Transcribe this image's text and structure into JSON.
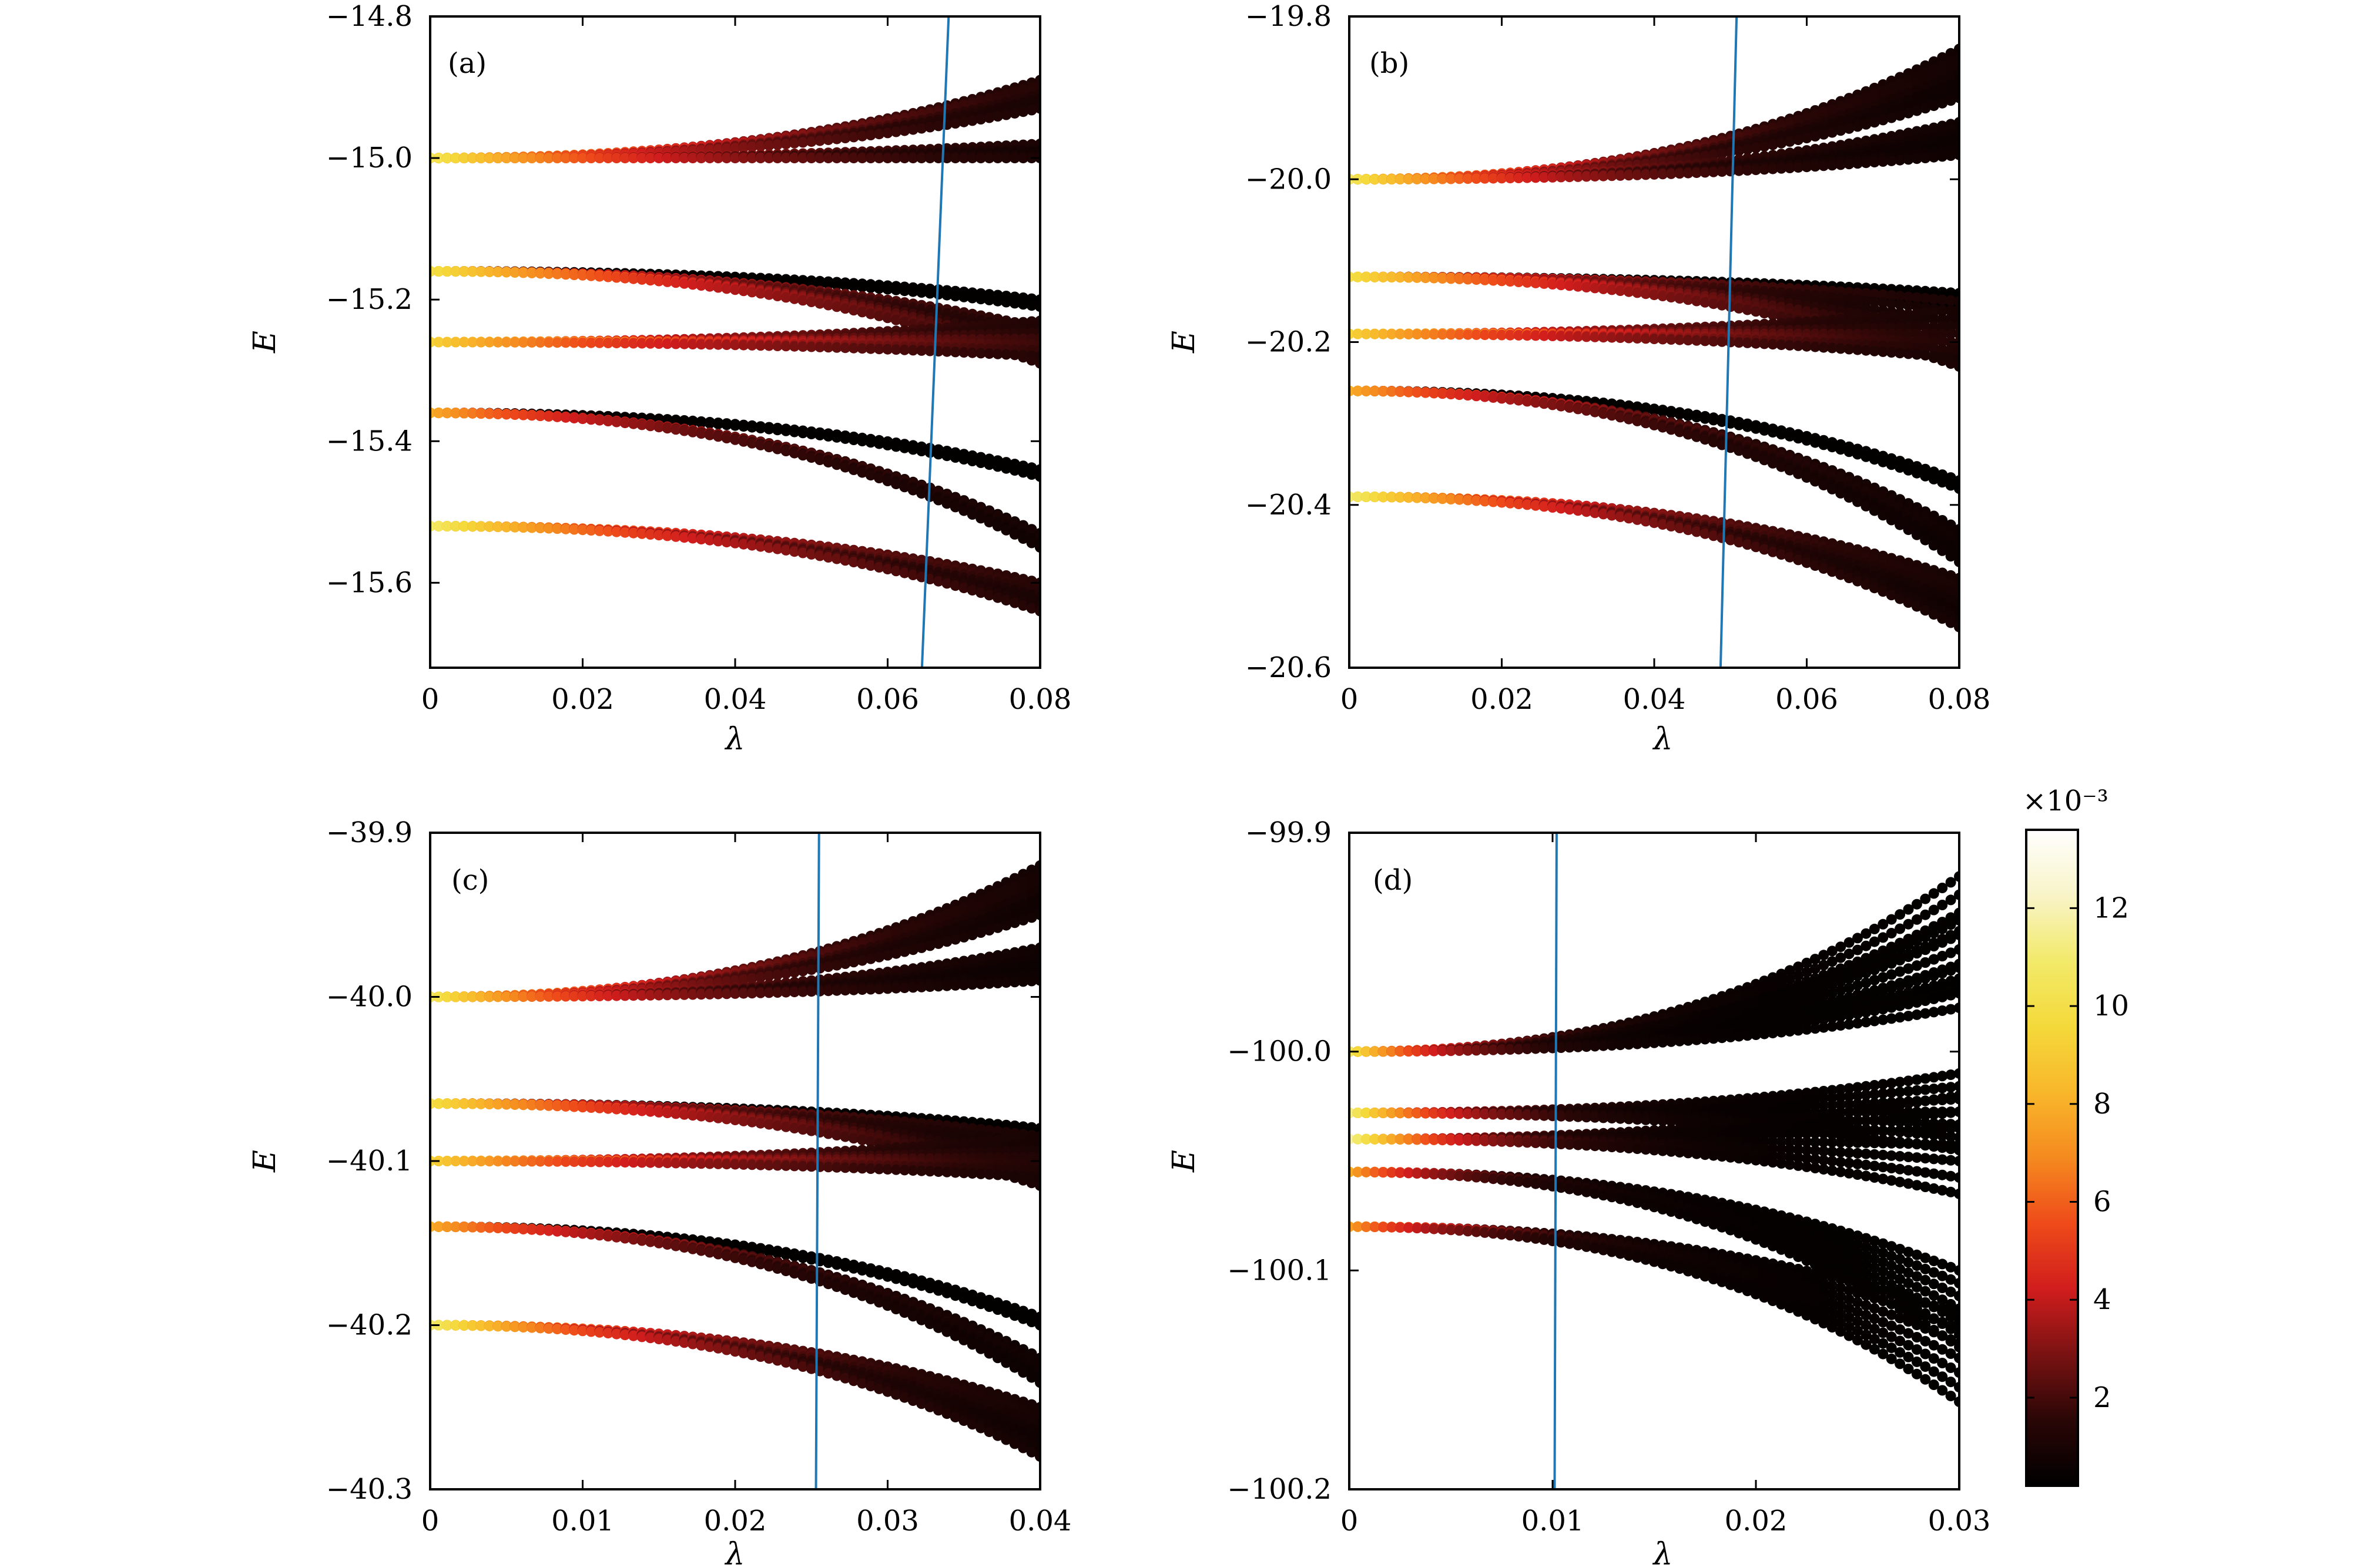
{
  "chart_data": [
    {
      "type": "scatter",
      "panel_label": "(a)",
      "xlabel": "λ",
      "ylabel": "E",
      "xlim": [
        0,
        0.08
      ],
      "ylim": [
        -15.72,
        -14.8
      ],
      "xticks": [
        "0",
        "0.02",
        "0.04",
        "0.06",
        "0.08"
      ],
      "yticks": [
        "−14.8",
        "−15.0",
        "−15.2",
        "−15.4",
        "−15.6"
      ],
      "ytick_values": [
        -14.8,
        -15.0,
        -15.2,
        -15.4,
        -15.6
      ],
      "bands": [
        {
          "y0": -15.0,
          "y_top": -14.89,
          "y_bot": -14.93,
          "cw": 0.0,
          "ct": 0.054,
          "density_max": 12
        },
        {
          "y0": -15.0,
          "y_top": -14.98,
          "y_bot": -15.0,
          "cw": 0.0,
          "ct": 0.05,
          "density_max": 11
        },
        {
          "y0": -15.16,
          "y_top": -15.2,
          "y_bot": -15.21,
          "cw": 0.0,
          "ct": 0.01,
          "density_max": 10
        },
        {
          "y0": -15.16,
          "y_top": -15.24,
          "y_bot": -15.29,
          "cw": 0.0,
          "ct": 0.06,
          "density_max": 11
        },
        {
          "y0": -15.26,
          "y_top": -15.23,
          "y_bot": -15.28,
          "cw": 0.0,
          "ct": 0.06,
          "density_max": 13
        },
        {
          "y0": -15.36,
          "y_top": -15.44,
          "y_bot": -15.45,
          "cw": 0.0,
          "ct": 0.01,
          "density_max": 10
        },
        {
          "y0": -15.36,
          "y_top": -15.53,
          "y_bot": -15.55,
          "cw": 0.0,
          "ct": 0.045,
          "density_max": 11
        },
        {
          "y0": -15.52,
          "y_top": -15.6,
          "y_bot": -15.64,
          "cw": 0.0,
          "ct": 0.055,
          "density_max": 12
        }
      ],
      "vline": [
        {
          "x": 0.0645,
          "y": -15.72
        },
        {
          "x": 0.068,
          "y": -14.8
        }
      ]
    },
    {
      "type": "scatter",
      "panel_label": "(b)",
      "xlabel": "λ",
      "ylabel": "E",
      "xlim": [
        0,
        0.08
      ],
      "ylim": [
        -20.6,
        -19.8
      ],
      "xticks": [
        "0",
        "0.02",
        "0.04",
        "0.06",
        "0.08"
      ],
      "yticks": [
        "−19.8",
        "−20.0",
        "−20.2",
        "−20.4",
        "−20.6"
      ],
      "ytick_values": [
        -19.8,
        -20.0,
        -20.2,
        -20.4,
        -20.6
      ],
      "bands": [
        {
          "y0": -20.0,
          "y_top": -19.84,
          "y_bot": -19.9,
          "cw": 0.0,
          "ct": 0.042,
          "density_max": 12
        },
        {
          "y0": -20.0,
          "y_top": -19.93,
          "y_bot": -19.97,
          "cw": 0.0,
          "ct": 0.04,
          "density_max": 11
        },
        {
          "y0": -20.12,
          "y_top": -20.14,
          "y_bot": -20.16,
          "cw": 0.0,
          "ct": 0.01,
          "density_max": 10
        },
        {
          "y0": -20.12,
          "y_top": -20.15,
          "y_bot": -20.23,
          "cw": 0.0,
          "ct": 0.05,
          "density_max": 11
        },
        {
          "y0": -20.19,
          "y_top": -20.16,
          "y_bot": -20.22,
          "cw": 0.0,
          "ct": 0.05,
          "density_max": 13
        },
        {
          "y0": -20.26,
          "y_top": -20.37,
          "y_bot": -20.38,
          "cw": 0.0,
          "ct": 0.01,
          "density_max": 10
        },
        {
          "y0": -20.26,
          "y_top": -20.43,
          "y_bot": -20.47,
          "cw": 0.0,
          "ct": 0.04,
          "density_max": 11
        },
        {
          "y0": -20.39,
          "y_top": -20.49,
          "y_bot": -20.55,
          "cw": 0.0,
          "ct": 0.045,
          "density_max": 12
        }
      ],
      "vline": [
        {
          "x": 0.0487,
          "y": -20.6
        },
        {
          "x": 0.0508,
          "y": -19.8
        }
      ]
    },
    {
      "type": "scatter",
      "panel_label": "(c)",
      "xlabel": "λ",
      "ylabel": "E",
      "xlim": [
        0,
        0.04
      ],
      "ylim": [
        -40.3,
        -39.9
      ],
      "xticks": [
        "0",
        "0.01",
        "0.02",
        "0.03",
        "0.04"
      ],
      "yticks": [
        "−39.9",
        "−40.0",
        "−40.1",
        "−40.2",
        "−40.3"
      ],
      "ytick_values": [
        -39.9,
        -40.0,
        -40.1,
        -40.2,
        -40.3
      ],
      "bands": [
        {
          "y0": -40.0,
          "y_top": -39.92,
          "y_bot": -39.95,
          "cw": 0.0,
          "ct": 0.022,
          "density_max": 12
        },
        {
          "y0": -40.0,
          "y_top": -39.97,
          "y_bot": -39.99,
          "cw": 0.0,
          "ct": 0.02,
          "density_max": 11
        },
        {
          "y0": -40.065,
          "y_top": -40.08,
          "y_bot": -40.085,
          "cw": 0.0,
          "ct": 0.005,
          "density_max": 10
        },
        {
          "y0": -40.065,
          "y_top": -40.085,
          "y_bot": -40.115,
          "cw": 0.0,
          "ct": 0.025,
          "density_max": 11
        },
        {
          "y0": -40.1,
          "y_top": -40.085,
          "y_bot": -40.11,
          "cw": 0.0,
          "ct": 0.025,
          "density_max": 13
        },
        {
          "y0": -40.14,
          "y_top": -40.195,
          "y_bot": -40.2,
          "cw": 0.0,
          "ct": 0.005,
          "density_max": 10
        },
        {
          "y0": -40.14,
          "y_top": -40.22,
          "y_bot": -40.235,
          "cw": 0.0,
          "ct": 0.02,
          "density_max": 11
        },
        {
          "y0": -40.2,
          "y_top": -40.25,
          "y_bot": -40.28,
          "cw": 0.0,
          "ct": 0.022,
          "density_max": 12
        }
      ],
      "vline": [
        {
          "x": 0.0253,
          "y": -40.3
        },
        {
          "x": 0.0255,
          "y": -39.9
        }
      ]
    },
    {
      "type": "scatter",
      "panel_label": "(d)",
      "xlabel": "λ",
      "ylabel": "E",
      "xlim": [
        0,
        0.03
      ],
      "ylim": [
        -100.2,
        -99.9
      ],
      "xticks": [
        "0",
        "0.01",
        "0.02",
        "0.03"
      ],
      "yticks": [
        "−99.9",
        "−100.0",
        "−100.1",
        "−100.2"
      ],
      "ytick_values": [
        -99.9,
        -100.0,
        -100.1,
        -100.2
      ],
      "bands": [
        {
          "y0": -100.0,
          "y_top": -99.92,
          "y_bot": -99.97,
          "cw": 0.0,
          "ct": 0.008,
          "density_max": 12
        },
        {
          "y0": -100.0,
          "y_top": -99.94,
          "y_bot": -99.98,
          "cw": 0.0,
          "ct": 0.007,
          "density_max": 11
        },
        {
          "y0": -100.028,
          "y_top": -100.01,
          "y_bot": -100.045,
          "cw": 0.0,
          "ct": 0.008,
          "density_max": 11
        },
        {
          "y0": -100.04,
          "y_top": -100.02,
          "y_bot": -100.065,
          "cw": 0.0,
          "ct": 0.008,
          "density_max": 13
        },
        {
          "y0": -100.055,
          "y_top": -100.1,
          "y_bot": -100.135,
          "cw": 0.0,
          "ct": 0.007,
          "density_max": 11
        },
        {
          "y0": -100.08,
          "y_top": -100.12,
          "y_bot": -100.16,
          "cw": 0.0,
          "ct": 0.008,
          "density_max": 12
        }
      ],
      "vline": [
        {
          "x": 0.0101,
          "y": -100.2
        },
        {
          "x": 0.0102,
          "y": -99.9
        }
      ]
    }
  ],
  "colorbar": {
    "multiplier": "×10⁻³",
    "ticks": [
      "2",
      "4",
      "6",
      "8",
      "10",
      "12"
    ],
    "tick_values": [
      2,
      4,
      6,
      8,
      10,
      12
    ],
    "range": [
      0.2,
      13.6
    ],
    "colormap": "hot",
    "gradient": [
      "#000000",
      "#2a0606",
      "#7a1212",
      "#d11d1d",
      "#ee4b1a",
      "#f58a1f",
      "#f8b72b",
      "#f4d93a",
      "#f2ea6a",
      "#f8f4c8",
      "#ffffff"
    ]
  },
  "line_color": "#1f77b4"
}
